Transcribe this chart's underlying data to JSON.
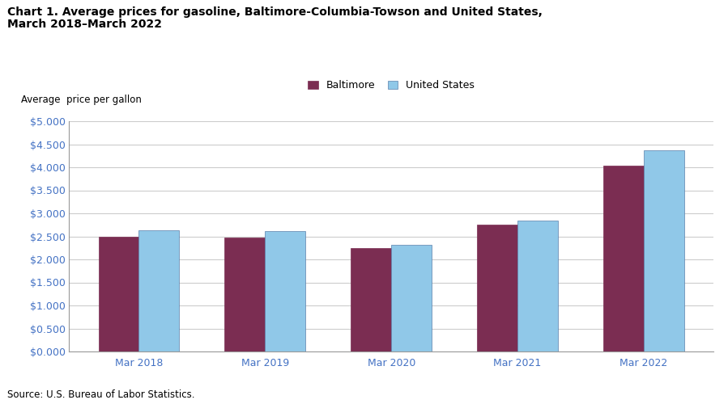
{
  "title_line1": "Chart 1. Average prices for gasoline, Baltimore-Columbia-Towson and United States,",
  "title_line2": "March 2018–March 2022",
  "ylabel": "Average  price per gallon",
  "categories": [
    "Mar 2018",
    "Mar 2019",
    "Mar 2020",
    "Mar 2021",
    "Mar 2022"
  ],
  "baltimore": [
    2.49,
    2.48,
    2.24,
    2.76,
    4.04
  ],
  "us": [
    2.63,
    2.61,
    2.32,
    2.85,
    4.37
  ],
  "baltimore_color": "#7B2D52",
  "us_color": "#90C8E8",
  "bar_edge_color": "#5A7FAA",
  "ylim": [
    0,
    5.0
  ],
  "yticks": [
    0.0,
    0.5,
    1.0,
    1.5,
    2.0,
    2.5,
    3.0,
    3.5,
    4.0,
    4.5,
    5.0
  ],
  "legend_baltimore": "Baltimore",
  "legend_us": "United States",
  "source": "Source: U.S. Bureau of Labor Statistics.",
  "tick_label_color": "#4472C4",
  "background_color": "#FFFFFF",
  "grid_color": "#CCCCCC"
}
